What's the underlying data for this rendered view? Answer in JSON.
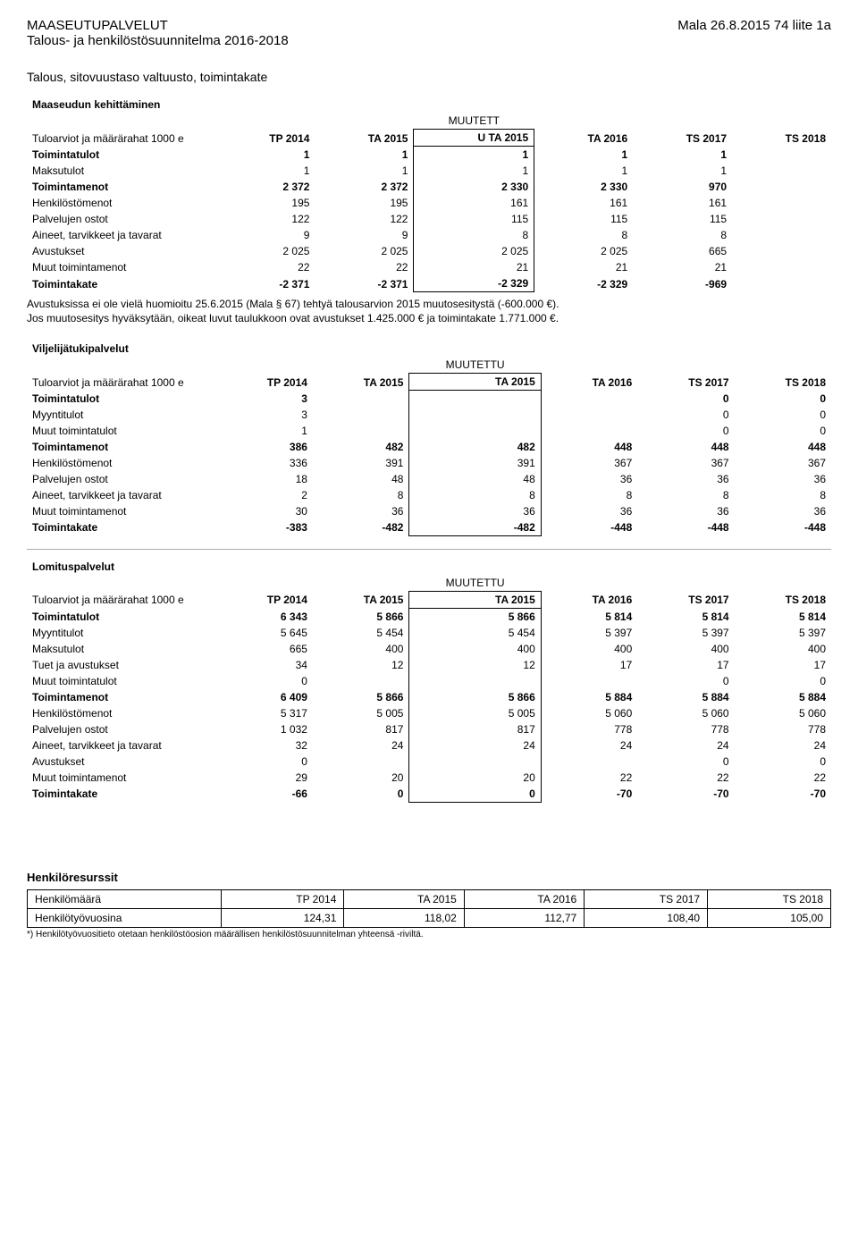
{
  "header": {
    "org": "MAASEUTUPALVELUT",
    "right": "Mala 26.8.2015 74 liite 1a",
    "sub": "Talous- ja henkilöstösuunnitelma 2016-2018"
  },
  "section_title": "Talous, sitovuustaso valtuusto, toimintakate",
  "col_headers": {
    "label1": "TP 2014",
    "label2": "TA 2015",
    "muutett": "MUUTETT",
    "uta2015": "U TA 2015",
    "muutettu": "MUUTETTU",
    "ta2015": "TA 2015",
    "ta2016": "TA 2016",
    "ts2017": "TS 2017",
    "ts2018": "TS 2018",
    "row_label": "Tuloarviot ja määrärahat 1000 e"
  },
  "table1": {
    "title": "Maaseudun kehittäminen",
    "rows": [
      {
        "label": "Toimintatulot",
        "v": [
          "1",
          "1",
          "1",
          "1",
          "1"
        ],
        "bold": true
      },
      {
        "label": "Maksutulot",
        "v": [
          "1",
          "1",
          "1",
          "1",
          "1"
        ]
      },
      {
        "label": "Toimintamenot",
        "v": [
          "2 372",
          "2 372",
          "2 330",
          "2 330",
          "970"
        ],
        "bold": true
      },
      {
        "label": "Henkilöstömenot",
        "v": [
          "195",
          "195",
          "161",
          "161",
          "161"
        ]
      },
      {
        "label": "Palvelujen ostot",
        "v": [
          "122",
          "122",
          "115",
          "115",
          "115"
        ]
      },
      {
        "label": "Aineet, tarvikkeet ja tavarat",
        "v": [
          "9",
          "9",
          "8",
          "8",
          "8"
        ]
      },
      {
        "label": "Avustukset",
        "v": [
          "2 025",
          "2 025",
          "2 025",
          "2 025",
          "665"
        ]
      },
      {
        "label": "Muut toimintamenot",
        "v": [
          "22",
          "22",
          "21",
          "21",
          "21"
        ]
      },
      {
        "label": "Toimintakate",
        "v": [
          "-2 371",
          "-2 371",
          "-2 329",
          "-2 329",
          "-969"
        ],
        "bold": true
      }
    ],
    "note1": "Avustuksissa ei ole vielä huomioitu 25.6.2015 (Mala § 67) tehtyä talousarvion 2015 muutosesitystä (-600.000 €).",
    "note2": "Jos muutosesitys hyväksytään, oikeat luvut taulukkoon ovat avustukset 1.425.000 € ja toimintakate 1.771.000 €."
  },
  "table2": {
    "title": "Viljelijätukipalvelut",
    "rows": [
      {
        "label": "Toimintatulot",
        "v": [
          "3",
          "",
          "",
          "",
          "0",
          "0"
        ],
        "bold": true
      },
      {
        "label": "Myyntitulot",
        "v": [
          "3",
          "",
          "",
          "",
          "0",
          "0"
        ]
      },
      {
        "label": "Muut toimintatulot",
        "v": [
          "1",
          "",
          "",
          "",
          "0",
          "0"
        ]
      },
      {
        "label": "Toimintamenot",
        "v": [
          "386",
          "482",
          "482",
          "448",
          "448",
          "448"
        ],
        "bold": true
      },
      {
        "label": "Henkilöstömenot",
        "v": [
          "336",
          "391",
          "391",
          "367",
          "367",
          "367"
        ]
      },
      {
        "label": "Palvelujen ostot",
        "v": [
          "18",
          "48",
          "48",
          "36",
          "36",
          "36"
        ]
      },
      {
        "label": "Aineet, tarvikkeet ja tavarat",
        "v": [
          "2",
          "8",
          "8",
          "8",
          "8",
          "8"
        ]
      },
      {
        "label": "Muut toimintamenot",
        "v": [
          "30",
          "36",
          "36",
          "36",
          "36",
          "36"
        ]
      },
      {
        "label": "Toimintakate",
        "v": [
          "-383",
          "-482",
          "-482",
          "-448",
          "-448",
          "-448"
        ],
        "bold": true
      }
    ]
  },
  "table3": {
    "title": "Lomituspalvelut",
    "rows": [
      {
        "label": "Toimintatulot",
        "v": [
          "6 343",
          "5 866",
          "5 866",
          "5 814",
          "5 814",
          "5 814"
        ],
        "bold": true
      },
      {
        "label": "Myyntitulot",
        "v": [
          "5 645",
          "5 454",
          "5 454",
          "5 397",
          "5 397",
          "5 397"
        ]
      },
      {
        "label": "Maksutulot",
        "v": [
          "665",
          "400",
          "400",
          "400",
          "400",
          "400"
        ]
      },
      {
        "label": "Tuet ja avustukset",
        "v": [
          "34",
          "12",
          "12",
          "17",
          "17",
          "17"
        ]
      },
      {
        "label": "Muut toimintatulot",
        "v": [
          "0",
          "",
          "",
          "",
          "0",
          "0"
        ]
      },
      {
        "label": "Toimintamenot",
        "v": [
          "6 409",
          "5 866",
          "5 866",
          "5 884",
          "5 884",
          "5 884"
        ],
        "bold": true
      },
      {
        "label": "Henkilöstömenot",
        "v": [
          "5 317",
          "5 005",
          "5 005",
          "5 060",
          "5 060",
          "5 060"
        ]
      },
      {
        "label": "Palvelujen ostot",
        "v": [
          "1 032",
          "817",
          "817",
          "778",
          "778",
          "778"
        ]
      },
      {
        "label": "Aineet, tarvikkeet ja tavarat",
        "v": [
          "32",
          "24",
          "24",
          "24",
          "24",
          "24"
        ]
      },
      {
        "label": "Avustukset",
        "v": [
          "0",
          "",
          "",
          "",
          "0",
          "0"
        ]
      },
      {
        "label": "Muut toimintamenot",
        "v": [
          "29",
          "20",
          "20",
          "22",
          "22",
          "22"
        ]
      },
      {
        "label": "Toimintakate",
        "v": [
          "-66",
          "0",
          "0",
          "-70",
          "-70",
          "-70"
        ],
        "bold": true
      }
    ]
  },
  "hr": {
    "title": "Henkilöresurssit",
    "headers": [
      "Henkilömäärä",
      "TP 2014",
      "TA 2015",
      "TA 2016",
      "TS 2017",
      "TS 2018"
    ],
    "row": [
      "Henkilötyövuosina",
      "124,31",
      "118,02",
      "112,77",
      "108,40",
      "105,00"
    ],
    "footnote": "*) Henkilötyövuositieto otetaan henkilöstöosion määrällisen henkilöstösuunnitelman yhteensä -riviltä."
  }
}
